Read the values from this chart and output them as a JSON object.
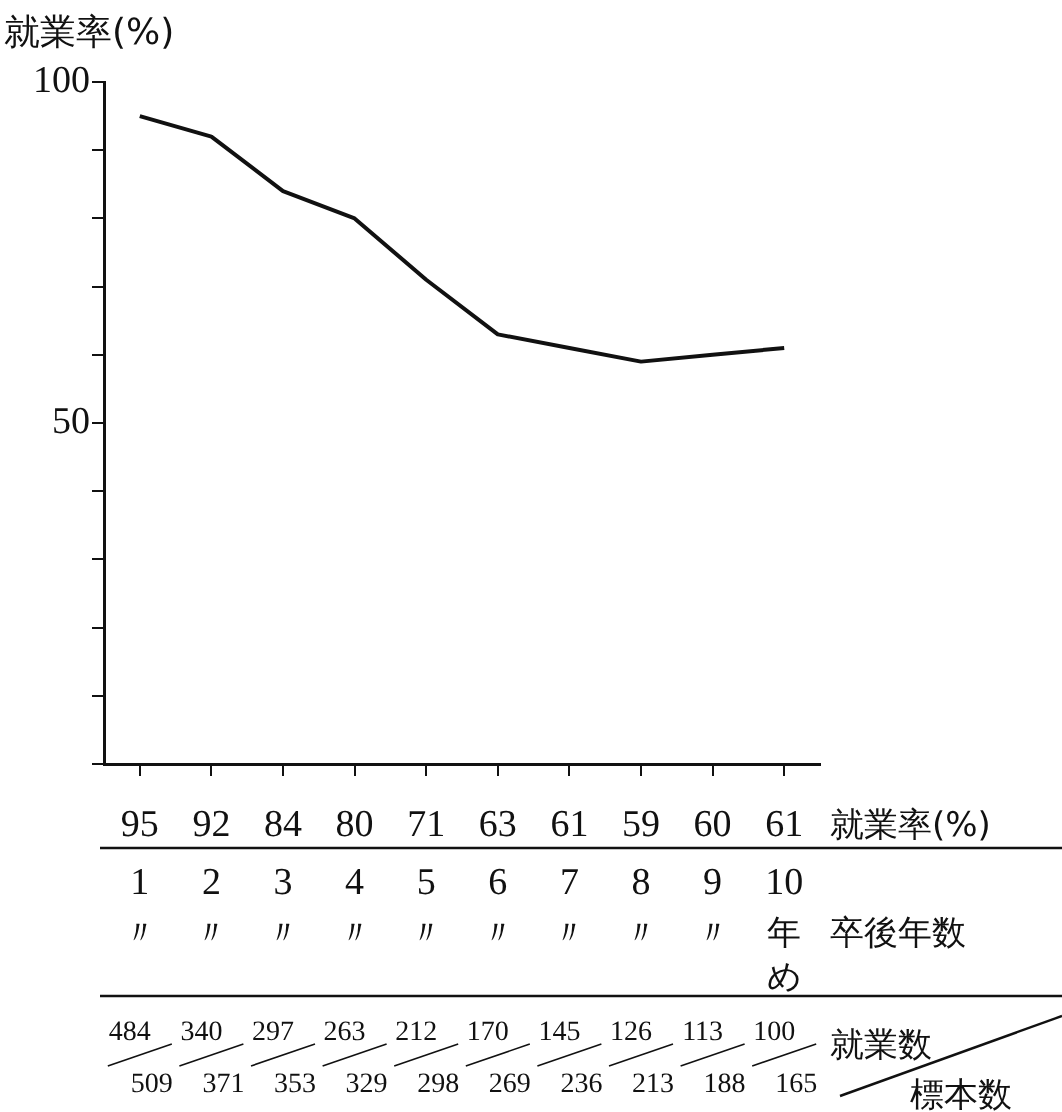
{
  "chart_data": {
    "type": "line",
    "ylabel": "就業率(%)",
    "categories": [
      "1〃",
      "2〃",
      "3〃",
      "4〃",
      "5〃",
      "6〃",
      "7〃",
      "8〃",
      "9〃",
      "10年め"
    ],
    "values": [
      95,
      92,
      84,
      80,
      71,
      63,
      61,
      59,
      60,
      61
    ],
    "color": "#111111",
    "data_labels": true,
    "ylim": [
      0,
      100
    ],
    "yticks": [
      {
        "value": 0,
        "label": null
      },
      {
        "value": 10,
        "label": null
      },
      {
        "value": 20,
        "label": null
      },
      {
        "value": 30,
        "label": null
      },
      {
        "value": 40,
        "label": null
      },
      50,
      {
        "value": 60,
        "label": null
      },
      {
        "value": 70,
        "label": null
      },
      {
        "value": 80,
        "label": null
      },
      {
        "value": 90,
        "label": null
      },
      100
    ],
    "grid": false,
    "legend": false,
    "annotations": [
      "就業率(%)",
      "卒後年数",
      "就業数",
      "標本数",
      "484",
      "509",
      "340",
      "371",
      "297",
      "353",
      "263",
      "329",
      "212",
      "298",
      "170",
      "269",
      "145",
      "236",
      "126",
      "213",
      "113",
      "188",
      "100",
      "165"
    ]
  }
}
